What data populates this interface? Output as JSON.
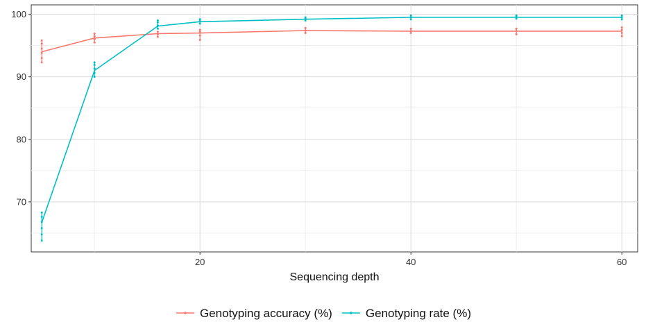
{
  "chart_data": {
    "type": "line",
    "title": "",
    "xlabel": "Sequencing depth",
    "ylabel": "",
    "xlim": [
      4,
      61.5
    ],
    "ylim": [
      62,
      101.5
    ],
    "x_ticks": [
      20,
      40,
      60
    ],
    "x_minor_grid": [
      10,
      30,
      50
    ],
    "y_ticks": [
      70,
      80,
      90,
      100
    ],
    "grid": true,
    "legend_position": "bottom",
    "colors": {
      "accuracy": "#f8766d",
      "rate": "#00bfc4"
    },
    "series": [
      {
        "name": "Genotyping accuracy (%)",
        "color": "#f8766d",
        "x": [
          5,
          10,
          16,
          20,
          30,
          40,
          50,
          60
        ],
        "y": [
          94.0,
          96.2,
          96.9,
          97.0,
          97.4,
          97.3,
          97.3,
          97.3
        ],
        "points": [
          [
            5,
            92.3
          ],
          [
            5,
            93.0
          ],
          [
            5,
            93.8
          ],
          [
            5,
            94.5
          ],
          [
            5,
            95.3
          ],
          [
            5,
            95.8
          ],
          [
            10,
            95.5
          ],
          [
            10,
            96.0
          ],
          [
            10,
            96.5
          ],
          [
            10,
            96.9
          ],
          [
            16,
            96.4
          ],
          [
            16,
            96.8
          ],
          [
            16,
            97.2
          ],
          [
            20,
            95.9
          ],
          [
            20,
            96.6
          ],
          [
            20,
            97.2
          ],
          [
            20,
            97.5
          ],
          [
            30,
            97.0
          ],
          [
            30,
            97.4
          ],
          [
            30,
            97.8
          ],
          [
            40,
            97.0
          ],
          [
            40,
            97.3
          ],
          [
            40,
            97.7
          ],
          [
            50,
            96.8
          ],
          [
            50,
            97.3
          ],
          [
            50,
            97.7
          ],
          [
            60,
            96.5
          ],
          [
            60,
            97.0
          ],
          [
            60,
            97.5
          ],
          [
            60,
            97.9
          ]
        ]
      },
      {
        "name": "Genotyping rate (%)",
        "color": "#00bfc4",
        "x": [
          5,
          10,
          16,
          20,
          30,
          40,
          50,
          60
        ],
        "y": [
          66.7,
          91.0,
          98.1,
          98.8,
          99.2,
          99.5,
          99.5,
          99.5
        ],
        "points": [
          [
            5,
            63.8
          ],
          [
            5,
            64.8
          ],
          [
            5,
            65.8
          ],
          [
            5,
            66.8
          ],
          [
            5,
            67.6
          ],
          [
            5,
            68.3
          ],
          [
            10,
            90.0
          ],
          [
            10,
            90.6
          ],
          [
            10,
            91.3
          ],
          [
            10,
            91.9
          ],
          [
            10,
            92.3
          ],
          [
            16,
            97.7
          ],
          [
            16,
            98.2
          ],
          [
            16,
            98.7
          ],
          [
            16,
            99.0
          ],
          [
            20,
            98.5
          ],
          [
            20,
            98.9
          ],
          [
            20,
            99.2
          ],
          [
            30,
            99.0
          ],
          [
            30,
            99.3
          ],
          [
            30,
            99.5
          ],
          [
            40,
            99.2
          ],
          [
            40,
            99.5
          ],
          [
            40,
            99.8
          ],
          [
            50,
            99.3
          ],
          [
            50,
            99.6
          ],
          [
            50,
            99.8
          ],
          [
            60,
            99.2
          ],
          [
            60,
            99.5
          ],
          [
            60,
            99.8
          ]
        ]
      }
    ]
  }
}
